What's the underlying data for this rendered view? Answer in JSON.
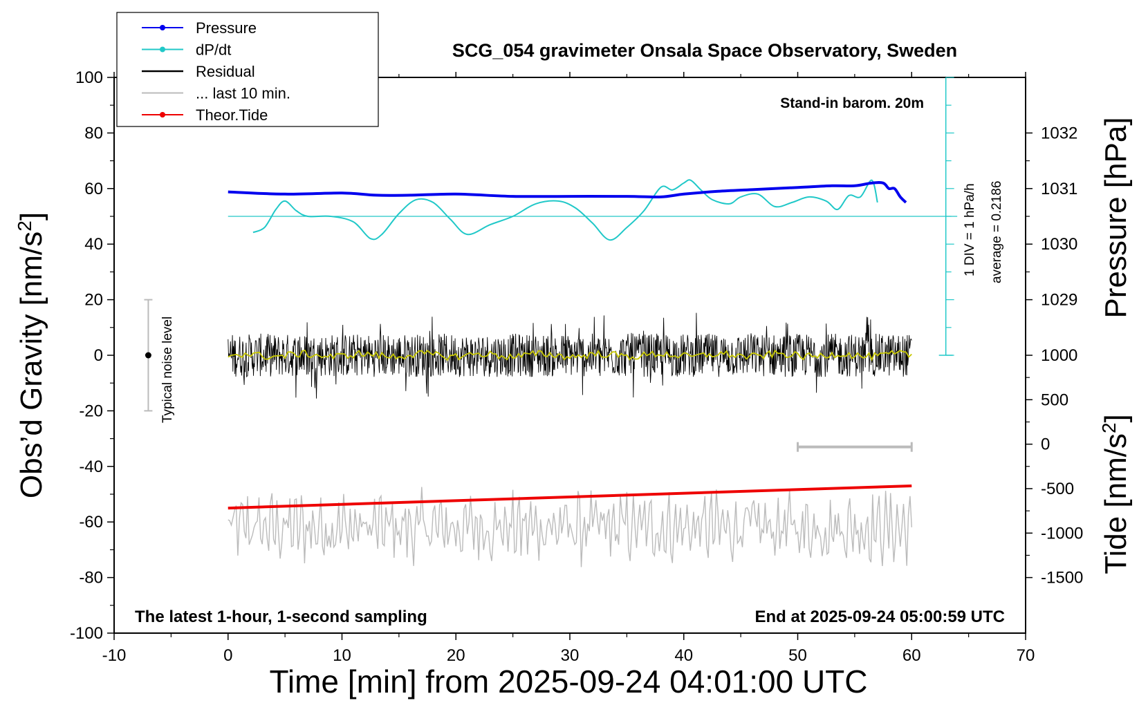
{
  "chart_data": {
    "type": "line",
    "title": "SCG_054 gravimeter Onsala Space Observatory, Sweden",
    "xlabel": "Time [min] from 2025-09-24 04:01:00 UTC",
    "ylabel_left_prefix": "Obs’d Gravity [nm/s",
    "ylabel_left_sup": "2",
    "ylabel_left_suffix": "]",
    "ylabel_right_top": "Pressure [hPa]",
    "ylabel_right_bottom_prefix": "Tide [nm/s",
    "ylabel_right_bottom_sup": "2",
    "ylabel_right_bottom_suffix": "]",
    "xlim": [
      -10,
      70
    ],
    "ylim": [
      -100,
      100
    ],
    "xticks": [
      "-10",
      "0",
      "10",
      "20",
      "30",
      "40",
      "50",
      "60",
      "70"
    ],
    "xtick_values": [
      -10,
      0,
      10,
      20,
      30,
      40,
      50,
      60,
      70
    ],
    "yticks": [
      "100",
      "80",
      "60",
      "40",
      "20",
      "0",
      "-20",
      "-40",
      "-60",
      "-80",
      "-100"
    ],
    "ytick_values": [
      100,
      80,
      60,
      40,
      20,
      0,
      -20,
      -40,
      -60,
      -80,
      -100
    ],
    "pressure_ticks": [
      "1032",
      "1031",
      "1030",
      "1029"
    ],
    "pressure_tick_values": [
      1032,
      1031,
      1030,
      1029
    ],
    "tide_ticks": [
      "1000",
      "500",
      "0",
      "-500",
      "-1000",
      "-1500"
    ],
    "tide_tick_values": [
      1000,
      500,
      0,
      -500,
      -1000,
      -1500
    ],
    "legend": [
      {
        "label": "Pressure",
        "color": "#0000ee",
        "marker": true
      },
      {
        "label": "dP/dt",
        "color": "#20c8c8",
        "marker": true
      },
      {
        "label": "Residual",
        "color": "#000000",
        "marker": false
      },
      {
        "label": "... last 10 min.",
        "color": "#bbbbbb",
        "marker": false
      },
      {
        "label": "Theor.Tide",
        "color": "#ee0000",
        "marker": true
      }
    ],
    "annotations": {
      "standin": "Stand-in barom. 20m",
      "div": "1 DIV = 1 hPa/h",
      "average": "average = 0.2186",
      "noise": "Typical noise level",
      "bottom_left": "The latest 1-hour, 1-second sampling",
      "bottom_right": "End at 2025-09-24 05:00:59 UTC"
    },
    "pressure": {
      "x": [
        0,
        5,
        10,
        13,
        16,
        20,
        25,
        30,
        35,
        38,
        40,
        43,
        46,
        50,
        53,
        55,
        56.5,
        57.5,
        58,
        58.5,
        59,
        59.5
      ],
      "y": [
        1030.94,
        1030.9,
        1030.92,
        1030.88,
        1030.88,
        1030.9,
        1030.86,
        1030.86,
        1030.86,
        1030.85,
        1030.9,
        1030.95,
        1030.98,
        1031.02,
        1031.05,
        1031.05,
        1031.1,
        1031.1,
        1031.0,
        1031.0,
        1030.85,
        1030.75
      ]
    },
    "dpdt": {
      "x": [
        2.2,
        3.2,
        4.2,
        5.0,
        6.0,
        7.0,
        9.0,
        11.0,
        12.5,
        13.5,
        15.0,
        16.5,
        18.0,
        19.5,
        21.0,
        23.0,
        25.0,
        27.0,
        29.0,
        30.5,
        32.0,
        33.5,
        35.0,
        36.5,
        38.0,
        39.0,
        40.0,
        40.6,
        41.5,
        42.5,
        44.0,
        45.0,
        46.5,
        48.0,
        49.5,
        51.0,
        52.5,
        53.5,
        54.5,
        55.5,
        56.5,
        57.0
      ],
      "y": [
        44.2,
        46.0,
        52.5,
        55.5,
        52.0,
        50.0,
        50.0,
        48.0,
        42.0,
        43.5,
        51.0,
        56.0,
        55.0,
        49.0,
        43.5,
        47.0,
        50.0,
        54.5,
        55.5,
        53.0,
        47.5,
        41.5,
        46.0,
        52.0,
        60.5,
        59.5,
        62.0,
        63.0,
        59.5,
        56.0,
        54.5,
        57.0,
        58.0,
        53.5,
        55.0,
        57.0,
        55.5,
        52.5,
        57.5,
        57.0,
        63.0,
        55.0
      ]
    },
    "dpdt_average": 0.2186,
    "dpdt_zero_level": 50,
    "residual": {
      "x_start": 0,
      "x_end": 60,
      "mean": 0,
      "noise_amplitude": 6
    },
    "last10": {
      "x_start": 0,
      "x_end": 60,
      "center": -62
    },
    "tide": {
      "x": [
        0,
        60
      ],
      "y": [
        -55,
        -47
      ]
    },
    "noise_bar": {
      "x": -7,
      "y_low": -20,
      "y_high": 20
    },
    "time_bar": {
      "x_start": 50,
      "x_end": 60,
      "y": -33
    }
  }
}
